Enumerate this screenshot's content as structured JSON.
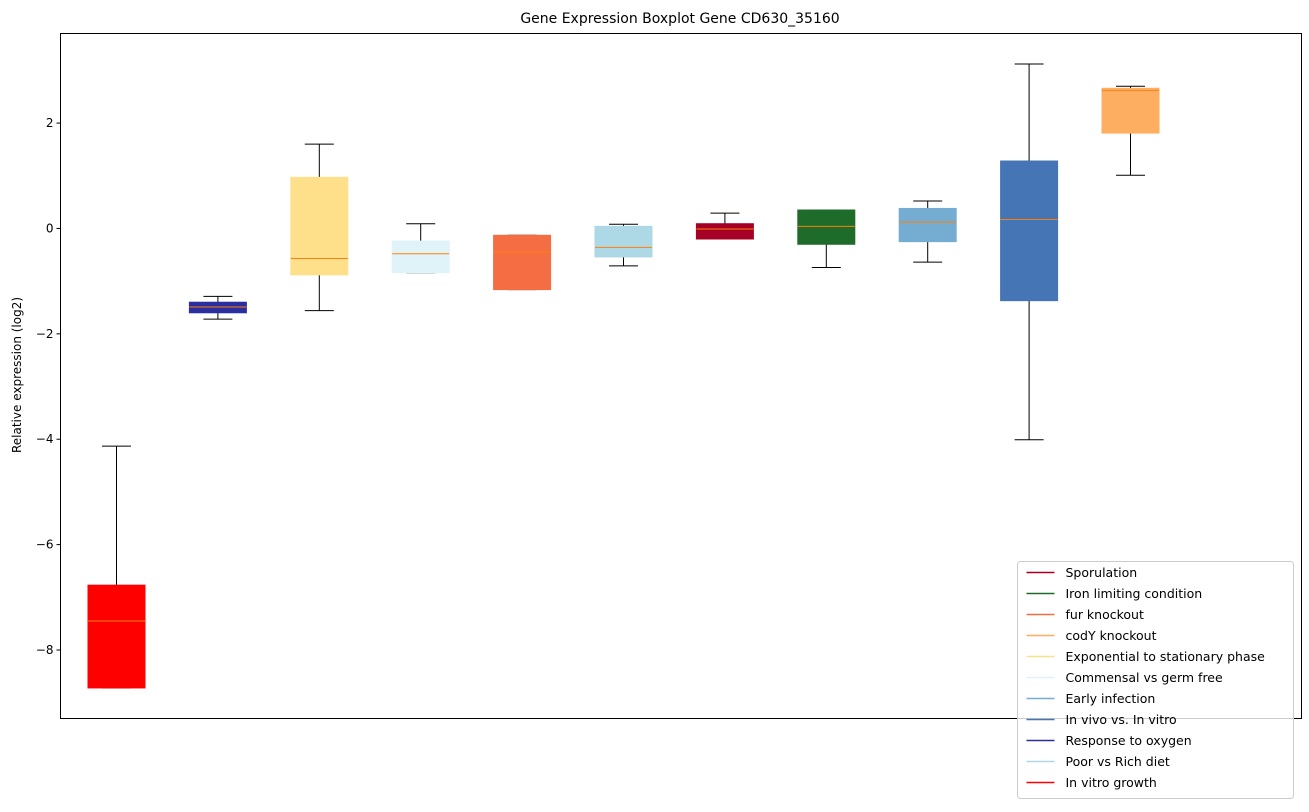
{
  "chart_data": {
    "type": "boxplot",
    "title": "Gene Expression Boxplot Gene CD630_35160",
    "xlabel": "",
    "ylabel": "Relative expression (log2)",
    "ylim": [
      -9.3,
      3.7
    ],
    "yticks": [
      -8,
      -6,
      -4,
      -2,
      0,
      2
    ],
    "grid": false,
    "legend_position": "bottom-right",
    "median_color": "#ff7f0e",
    "boxes": [
      {
        "name": "In vitro growth",
        "color": "#ff0000",
        "whisker_low": -8.72,
        "q1": -8.72,
        "median": -7.45,
        "q3": -6.77,
        "whisker_high": -4.13
      },
      {
        "name": "Response to oxygen",
        "color": "#2b2e9e",
        "whisker_low": -1.72,
        "q1": -1.6,
        "median": -1.49,
        "q3": -1.4,
        "whisker_high": -1.29
      },
      {
        "name": "Exponential to stationary phase",
        "color": "#fee08b",
        "whisker_low": -1.56,
        "q1": -0.88,
        "median": -0.57,
        "q3": 0.97,
        "whisker_high": 1.6
      },
      {
        "name": "Commensal vs germ free",
        "color": "#e0f3f8",
        "whisker_low": -0.84,
        "q1": -0.84,
        "median": -0.48,
        "q3": -0.24,
        "whisker_high": 0.09
      },
      {
        "name": "fur knockout",
        "color": "#f46d43",
        "whisker_low": -1.16,
        "q1": -1.16,
        "median": -0.45,
        "q3": -0.13,
        "whisker_high": -0.13
      },
      {
        "name": "Poor vs Rich diet",
        "color": "#add8e6",
        "whisker_low": -0.71,
        "q1": -0.54,
        "median": -0.36,
        "q3": 0.04,
        "whisker_high": 0.08
      },
      {
        "name": "Sporulation",
        "color": "#a50026",
        "whisker_low": -0.2,
        "q1": -0.2,
        "median": -0.01,
        "q3": 0.09,
        "whisker_high": 0.29
      },
      {
        "name": "Iron limiting condition",
        "color": "#1f6b2a",
        "whisker_low": -0.74,
        "q1": -0.3,
        "median": 0.04,
        "q3": 0.35,
        "whisker_high": 0.35
      },
      {
        "name": "Early infection",
        "color": "#74add1",
        "whisker_low": -0.64,
        "q1": -0.25,
        "median": 0.12,
        "q3": 0.38,
        "whisker_high": 0.52
      },
      {
        "name": "In vivo vs. In vitro",
        "color": "#4575b4",
        "whisker_low": -4.01,
        "q1": -1.37,
        "median": 0.17,
        "q3": 1.28,
        "whisker_high": 3.12
      },
      {
        "name": "codY knockout",
        "color": "#fdae61",
        "whisker_low": 1.01,
        "q1": 1.81,
        "median": 2.62,
        "q3": 2.66,
        "whisker_high": 2.7
      }
    ],
    "legend": [
      {
        "label": "Sporulation",
        "color": "#a50026"
      },
      {
        "label": "Iron limiting condition",
        "color": "#1f6b2a"
      },
      {
        "label": "fur knockout",
        "color": "#f46d43"
      },
      {
        "label": "codY knockout",
        "color": "#fdae61"
      },
      {
        "label": "Exponential to stationary phase",
        "color": "#fee08b"
      },
      {
        "label": "Commensal vs germ free",
        "color": "#e0f3f8"
      },
      {
        "label": "Early infection",
        "color": "#74add1"
      },
      {
        "label": "In vivo vs. In vitro",
        "color": "#4575b4"
      },
      {
        "label": "Response to oxygen",
        "color": "#2b2e9e"
      },
      {
        "label": "Poor vs Rich diet",
        "color": "#add8e6"
      },
      {
        "label": "In vitro growth",
        "color": "#ff0000"
      }
    ]
  }
}
